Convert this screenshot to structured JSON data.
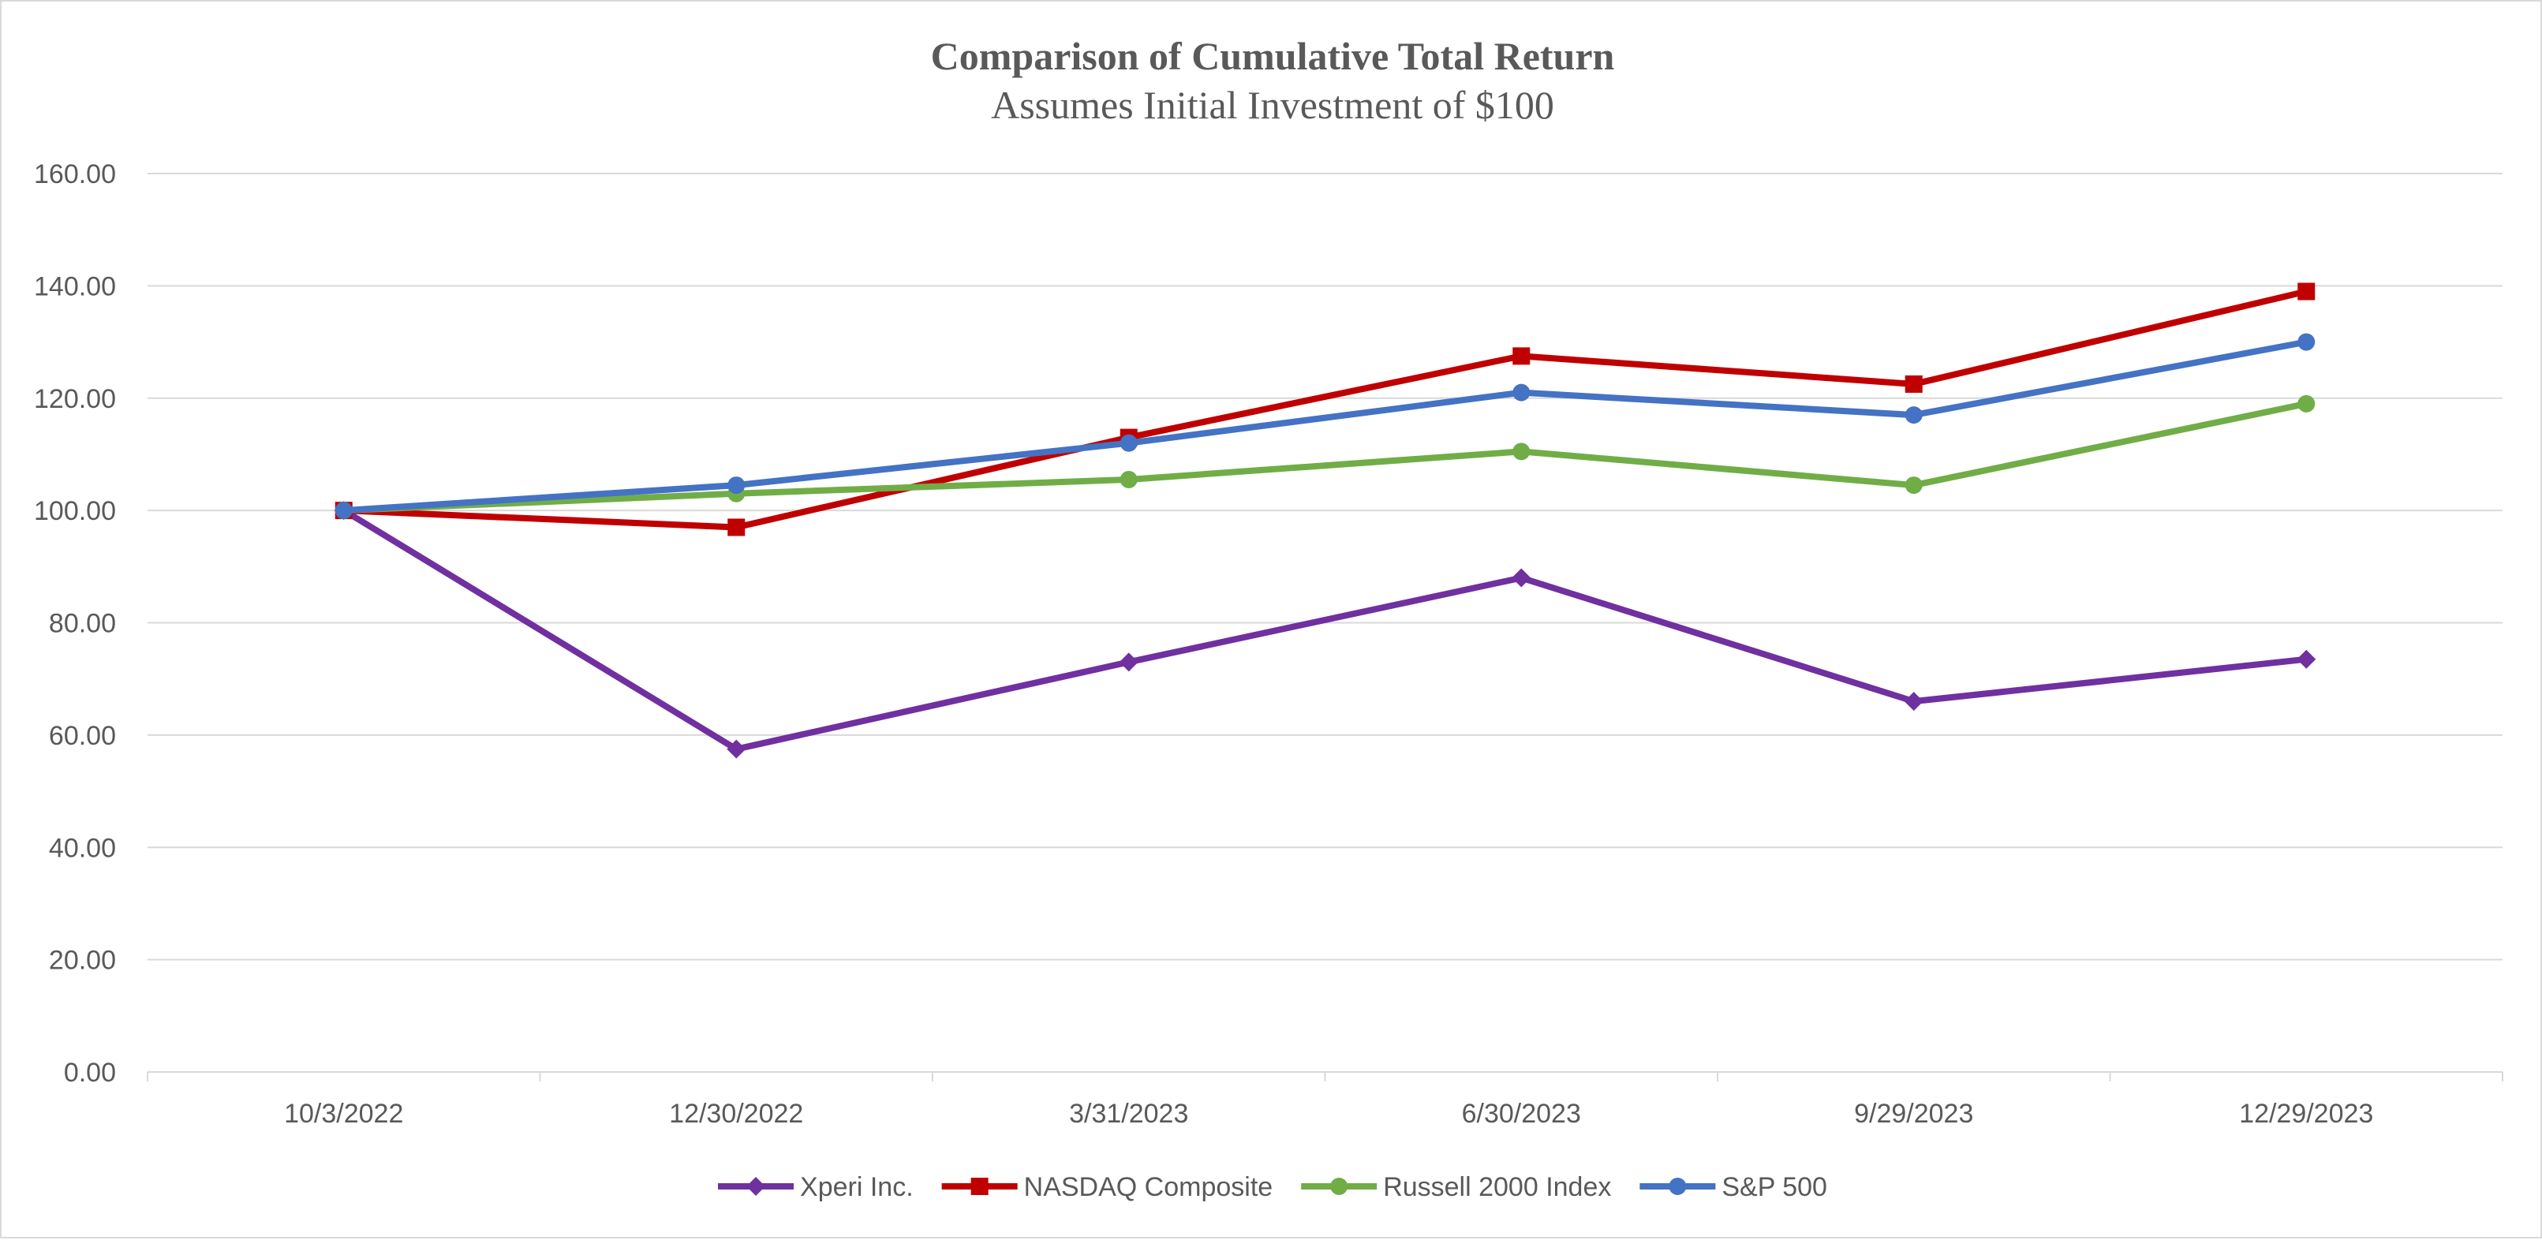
{
  "chart_data": {
    "type": "line",
    "title": "Comparison of Cumulative Total Return",
    "subtitle": "Assumes Initial Investment of $100",
    "xlabel": "",
    "ylabel": "",
    "categories": [
      "10/3/2022",
      "12/30/2022",
      "3/31/2023",
      "6/30/2023",
      "9/29/2023",
      "12/29/2023"
    ],
    "ylim": [
      0,
      160
    ],
    "yticks": [
      "0.00",
      "20.00",
      "40.00",
      "60.00",
      "80.00",
      "100.00",
      "120.00",
      "140.00",
      "160.00"
    ],
    "grid": "horizontal",
    "legend_position": "bottom",
    "series": [
      {
        "name": "Xperi Inc.",
        "color": "#7030a0",
        "marker": "diamond",
        "values": [
          100.0,
          57.5,
          73.0,
          88.0,
          66.0,
          73.5
        ]
      },
      {
        "name": "NASDAQ Composite",
        "color": "#c00000",
        "marker": "square",
        "values": [
          100.0,
          97.0,
          113.0,
          127.5,
          122.5,
          139.0
        ]
      },
      {
        "name": "Russell 2000 Index",
        "color": "#70ad47",
        "marker": "circle",
        "values": [
          100.0,
          103.0,
          105.5,
          110.5,
          104.5,
          119.0
        ]
      },
      {
        "name": "S&P 500",
        "color": "#4472c4",
        "marker": "circle",
        "values": [
          100.0,
          104.5,
          112.0,
          121.0,
          117.0,
          130.0
        ]
      }
    ]
  }
}
